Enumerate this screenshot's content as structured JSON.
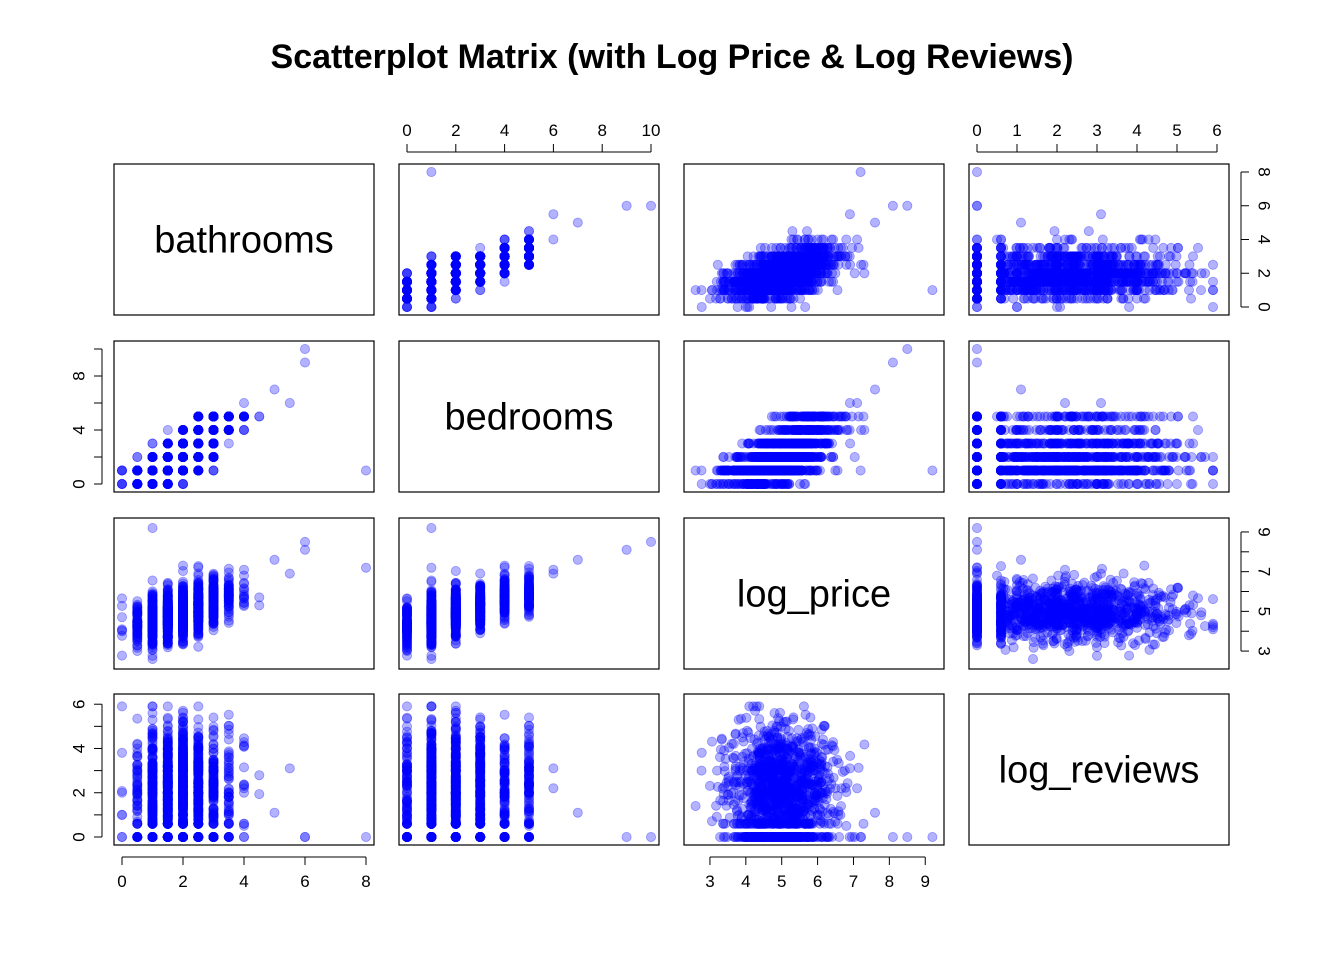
{
  "title": "Scatterplot Matrix (with Log Price & Log Reviews)",
  "chart_data": {
    "type": "scatter",
    "title": "Scatterplot Matrix (with Log Price & Log Reviews)",
    "variables": [
      "bathrooms",
      "bedrooms",
      "log_price",
      "log_reviews"
    ],
    "point_color": "#0000ff",
    "point_alpha": 0.3,
    "ranges": {
      "bathrooms": [
        0,
        8
      ],
      "bedrooms": [
        0,
        10
      ],
      "log_price": [
        2.5,
        9.3
      ],
      "log_reviews": [
        0,
        6.1
      ]
    },
    "ticks": {
      "bathrooms": [
        0,
        2,
        4,
        6,
        8
      ],
      "bedrooms": [
        0,
        2,
        4,
        6,
        8,
        10
      ],
      "log_price": [
        3,
        4,
        5,
        6,
        7,
        8,
        9
      ],
      "log_reviews": [
        0,
        1,
        2,
        3,
        4,
        5,
        6
      ]
    },
    "axis_labels": {
      "top": {
        "bedrooms": [
          "0",
          "2",
          "4",
          "6",
          "8",
          "10"
        ],
        "log_reviews": [
          "0",
          "1",
          "2",
          "3",
          "4",
          "5",
          "6"
        ]
      },
      "bottom": {
        "bathrooms": [
          "0",
          "2",
          "4",
          "6",
          "8"
        ],
        "log_price": [
          "3",
          "4",
          "5",
          "6",
          "7",
          "8",
          "9"
        ]
      },
      "left": {
        "bedrooms": [
          "0",
          "4",
          "8"
        ],
        "log_reviews": [
          "0",
          "2",
          "4",
          "6"
        ]
      },
      "right": {
        "bathrooms": [
          "0",
          "2",
          "4",
          "6",
          "8"
        ],
        "log_price": [
          "3",
          "5",
          "7",
          "9"
        ]
      }
    },
    "grid": false,
    "sampled_observations": {
      "note_fields": [
        "bathrooms",
        "bedrooms",
        "log_price",
        "log_reviews"
      ],
      "rows": [
        [
          1,
          1,
          4.2,
          0
        ],
        [
          1,
          1,
          4.6,
          2.1
        ],
        [
          1,
          0,
          4.4,
          3.3
        ],
        [
          1,
          2,
          4.9,
          1.1
        ],
        [
          1,
          1,
          5.0,
          4.2
        ],
        [
          2,
          3,
          5.6,
          2.6
        ],
        [
          2,
          2,
          5.3,
          1.6
        ],
        [
          2,
          4,
          6.1,
          0.7
        ],
        [
          2,
          3,
          5.8,
          3.5
        ],
        [
          1.5,
          2,
          5.0,
          2.3
        ],
        [
          1.5,
          1,
          4.7,
          4.4
        ],
        [
          2.5,
          3,
          5.4,
          1.2
        ],
        [
          3,
          4,
          6.2,
          2.9
        ],
        [
          3,
          5,
          6.6,
          0
        ],
        [
          3.5,
          4,
          6.0,
          1.8
        ],
        [
          4,
          5,
          6.8,
          0.5
        ],
        [
          4,
          6,
          7.1,
          2.2
        ],
        [
          1,
          1,
          3.8,
          5.3
        ],
        [
          1,
          1,
          4.3,
          5.9
        ],
        [
          1,
          2,
          4.8,
          5.6
        ],
        [
          1,
          0,
          3.2,
          3.0
        ],
        [
          1,
          1,
          2.6,
          1.4
        ],
        [
          2,
          2,
          5.1,
          5.2
        ],
        [
          2,
          3,
          5.7,
          4.7
        ],
        [
          1,
          1,
          4.1,
          0.7
        ],
        [
          0,
          1,
          4.0,
          0
        ],
        [
          0.5,
          1,
          3.9,
          1.9
        ],
        [
          1,
          1,
          9.2,
          0
        ],
        [
          5,
          7,
          7.6,
          1.1
        ],
        [
          6,
          9,
          8.1,
          0
        ],
        [
          8,
          1,
          7.2,
          0
        ],
        [
          6,
          10,
          8.5,
          0
        ],
        [
          5.5,
          6,
          6.9,
          3.1
        ],
        [
          3,
          2,
          5.2,
          4.8
        ],
        [
          2,
          1,
          4.5,
          3.9
        ]
      ]
    }
  },
  "diagonal_labels": [
    "bathrooms",
    "bedrooms",
    "log_price",
    "log_reviews"
  ]
}
